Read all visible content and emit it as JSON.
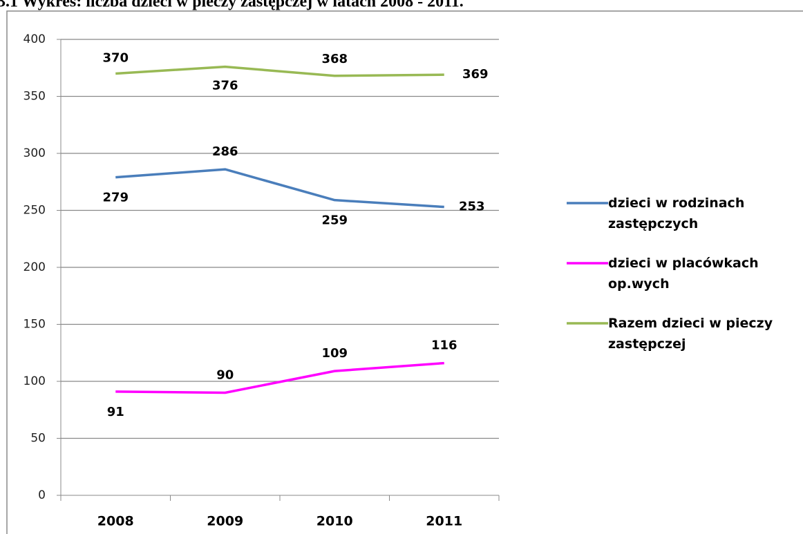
{
  "chart_data": {
    "type": "line",
    "title": "3.1 Wykres: liczba dzieci w pieczy zastępczej w latach 2008 - 2011.",
    "categories": [
      "2008",
      "2009",
      "2010",
      "2011"
    ],
    "series": [
      {
        "name": "dzieci w rodzinach zastępczych",
        "color": "#4a7ebb",
        "values": [
          279,
          286,
          259,
          253
        ]
      },
      {
        "name": "dzieci w placówkach op.wych",
        "color": "#ff00ff",
        "values": [
          91,
          90,
          109,
          116
        ]
      },
      {
        "name": "Razem dzieci w pieczy zastępczej",
        "color": "#98b954",
        "values": [
          370,
          376,
          368,
          369
        ]
      }
    ],
    "ylim": [
      0,
      400
    ],
    "yticks": [
      0,
      50,
      100,
      150,
      200,
      250,
      300,
      350,
      400
    ],
    "grid": true,
    "legend": "right"
  }
}
